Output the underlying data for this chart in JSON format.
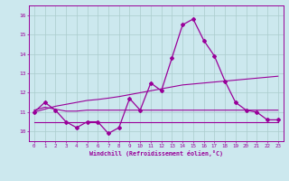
{
  "xlabel": "Windchill (Refroidissement éolien,°C)",
  "background_color": "#cce8ee",
  "grid_color": "#aacccc",
  "line_color": "#990099",
  "x_hours": [
    0,
    1,
    2,
    3,
    4,
    5,
    6,
    7,
    8,
    9,
    10,
    11,
    12,
    13,
    14,
    15,
    16,
    17,
    18,
    19,
    20,
    21,
    22,
    23
  ],
  "ylim": [
    9.5,
    16.5
  ],
  "yticks": [
    10,
    11,
    12,
    13,
    14,
    15,
    16
  ],
  "curve_main": [
    11.0,
    11.5,
    11.1,
    10.5,
    10.2,
    10.5,
    10.5,
    9.9,
    10.2,
    11.7,
    11.1,
    12.5,
    12.1,
    13.8,
    15.5,
    15.8,
    14.7,
    13.9,
    12.6,
    11.5,
    11.1,
    11.0,
    10.6,
    10.6
  ],
  "curve_upper_trend": [
    11.0,
    11.15,
    11.3,
    11.4,
    11.5,
    11.6,
    11.65,
    11.72,
    11.8,
    11.9,
    12.0,
    12.1,
    12.2,
    12.3,
    12.4,
    12.45,
    12.5,
    12.55,
    12.6,
    12.65,
    12.7,
    12.75,
    12.8,
    12.85
  ],
  "curve_mid_flat": [
    11.1,
    11.25,
    11.15,
    11.05,
    11.05,
    11.1,
    11.1,
    11.1,
    11.1,
    11.1,
    11.1,
    11.1,
    11.1,
    11.1,
    11.1,
    11.1,
    11.1,
    11.1,
    11.1,
    11.1,
    11.1,
    11.1,
    11.1,
    11.1
  ],
  "curve_lower_flat": [
    10.5,
    10.5,
    10.5,
    10.5,
    10.5,
    10.5,
    10.5,
    10.5,
    10.5,
    10.5,
    10.5,
    10.5,
    10.5,
    10.5,
    10.5,
    10.5,
    10.5,
    10.5,
    10.5,
    10.5,
    10.5,
    10.5,
    10.5,
    10.5
  ]
}
